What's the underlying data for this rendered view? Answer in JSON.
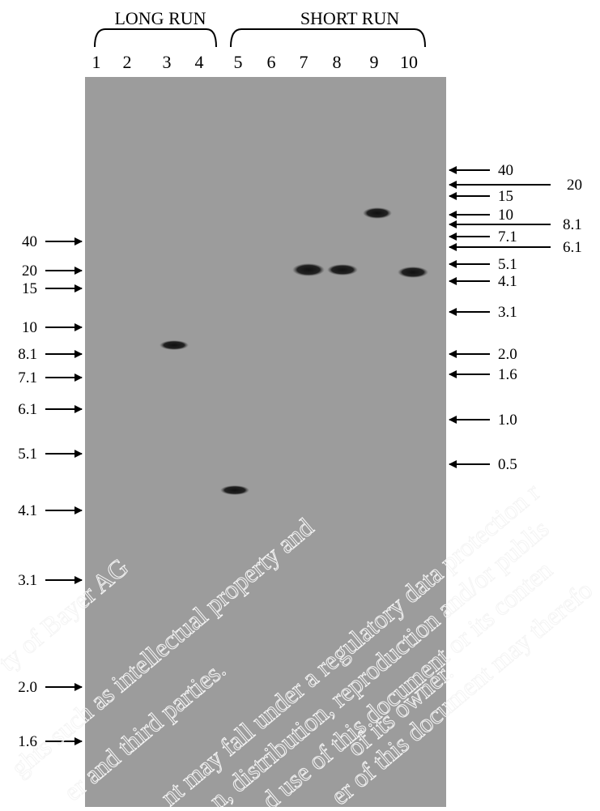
{
  "header": {
    "groups": [
      "LONG RUN",
      "SHORT RUN"
    ],
    "lanes": [
      "1",
      "2",
      "3",
      "4",
      "5",
      "6",
      "7",
      "8",
      "9",
      "10"
    ]
  },
  "left_markers": [
    "40",
    "20",
    "15",
    "10",
    "8.1",
    "7.1",
    "6.1",
    "5.1",
    "4.1",
    "3.1",
    "2.0",
    "1.6"
  ],
  "right_markers": [
    "40",
    "20",
    "15",
    "10",
    "8.1",
    "7.1",
    "6.1",
    "5.1",
    "4.1",
    "3.1",
    "2.0",
    "1.6",
    "1.0",
    "0.5"
  ],
  "watermark": [
    "ty of Bayer AG",
    "ghts such as intellectual property and",
    "er and third parties.",
    "nt may fall under a regulatory data protection r",
    "n, distribution, reproduction and/or publis",
    "d use of this document or its conten",
    "er of this document may therefo",
    "of its owner."
  ]
}
